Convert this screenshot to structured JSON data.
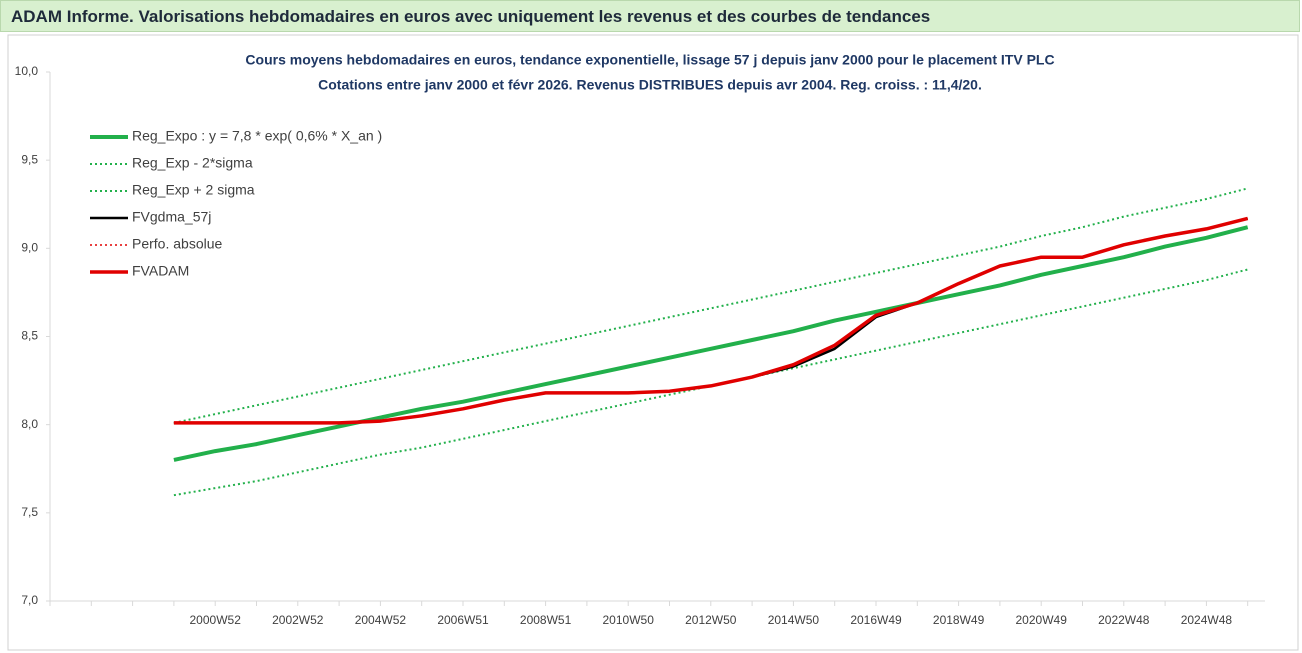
{
  "header": {
    "title": "ADAM Informe. Valorisations hebdomadaires en euros avec uniquement les revenus et des courbes de tendances"
  },
  "chart_data": {
    "type": "line",
    "title": "Cours moyens hebdomadaires en euros, tendance exponentielle, lissage 57 j depuis janv 2000 pour le placement ITV PLC",
    "subtitle": "Cotations entre janv 2000 et févr 2026. Revenus DISTRIBUES depuis avr 2004. Reg. croiss. : 11,4/20.",
    "categories": [
      null,
      null,
      null,
      null,
      "2000W52",
      null,
      "2002W52",
      null,
      "2004W52",
      null,
      "2006W51",
      null,
      "2008W51",
      null,
      "2010W50",
      null,
      "2012W50",
      null,
      "2014W50",
      null,
      "2016W49",
      null,
      "2018W49",
      null,
      "2020W49",
      null,
      "2022W48",
      null,
      "2024W48",
      null
    ],
    "ylim": [
      7,
      10
    ],
    "yticks": [
      {
        "value": 7,
        "label": "7,0"
      },
      {
        "value": 7.5,
        "label": "7,5"
      },
      {
        "value": 8,
        "label": "8,0"
      },
      {
        "value": 8.5,
        "label": "8,5"
      },
      {
        "value": 9,
        "label": "9,0"
      },
      {
        "value": 9.5,
        "label": "9,5"
      },
      {
        "value": 10,
        "label": "10,0"
      }
    ],
    "grid": false,
    "legend": "upper left",
    "series": [
      {
        "name": "Reg_Expo : y = 7,8 * exp( 0,6% *  X_an )",
        "color": "#22b04b",
        "style": "solid",
        "width": 4,
        "values": [
          null,
          null,
          null,
          7.8,
          7.85,
          7.89,
          7.94,
          7.99,
          8.04,
          8.09,
          8.13,
          8.18,
          8.23,
          8.28,
          8.33,
          8.38,
          8.43,
          8.48,
          8.53,
          8.59,
          8.64,
          8.69,
          8.74,
          8.79,
          8.85,
          8.9,
          8.95,
          9.01,
          9.06,
          9.12
        ]
      },
      {
        "name": "Reg_Exp - 2*sigma",
        "color": "#22b04b",
        "style": "dotted",
        "width": 2,
        "values": [
          null,
          null,
          null,
          7.6,
          7.64,
          7.68,
          7.73,
          7.78,
          7.83,
          7.87,
          7.92,
          7.97,
          8.02,
          8.07,
          8.12,
          8.17,
          8.22,
          8.27,
          8.32,
          8.37,
          8.42,
          8.47,
          8.52,
          8.57,
          8.62,
          8.67,
          8.72,
          8.77,
          8.82,
          8.88
        ]
      },
      {
        "name": "Reg_Exp + 2 sigma",
        "color": "#22b04b",
        "style": "dotted",
        "width": 2,
        "values": [
          null,
          null,
          null,
          8.01,
          8.06,
          8.11,
          8.16,
          8.21,
          8.26,
          8.31,
          8.36,
          8.41,
          8.46,
          8.51,
          8.56,
          8.61,
          8.66,
          8.71,
          8.76,
          8.81,
          8.86,
          8.91,
          8.96,
          9.01,
          9.07,
          9.12,
          9.18,
          9.23,
          9.28,
          9.34
        ]
      },
      {
        "name": "FVgdma_57j",
        "color": "#000000",
        "style": "solid",
        "width": 2.5,
        "values": [
          null,
          null,
          null,
          8.01,
          8.01,
          8.01,
          8.01,
          8.01,
          8.02,
          8.05,
          8.09,
          8.14,
          8.18,
          8.18,
          8.18,
          8.19,
          8.22,
          8.27,
          8.33,
          8.43,
          8.61,
          8.69,
          8.8,
          8.9,
          8.95,
          8.95,
          9.02,
          9.07,
          9.11,
          9.17
        ]
      },
      {
        "name": "Perfo. absolue",
        "color": "#e00000",
        "style": "dotted",
        "width": 1.5,
        "values": [
          null,
          null,
          null,
          8.01,
          8.01,
          8.01,
          8.01,
          8.01,
          8.02,
          8.05,
          8.09,
          8.14,
          8.18,
          8.18,
          8.18,
          8.19,
          8.22,
          8.27,
          8.34,
          8.45,
          8.62,
          8.69,
          8.8,
          8.9,
          8.95,
          8.95,
          9.02,
          9.07,
          9.11,
          9.17
        ]
      },
      {
        "name": "FVADAM",
        "color": "#e00000",
        "style": "solid",
        "width": 3.5,
        "values": [
          null,
          null,
          null,
          8.01,
          8.01,
          8.01,
          8.01,
          8.01,
          8.02,
          8.05,
          8.09,
          8.14,
          8.18,
          8.18,
          8.18,
          8.19,
          8.22,
          8.27,
          8.34,
          8.45,
          8.62,
          8.69,
          8.8,
          8.9,
          8.95,
          8.95,
          9.02,
          9.07,
          9.11,
          9.17
        ]
      }
    ]
  }
}
